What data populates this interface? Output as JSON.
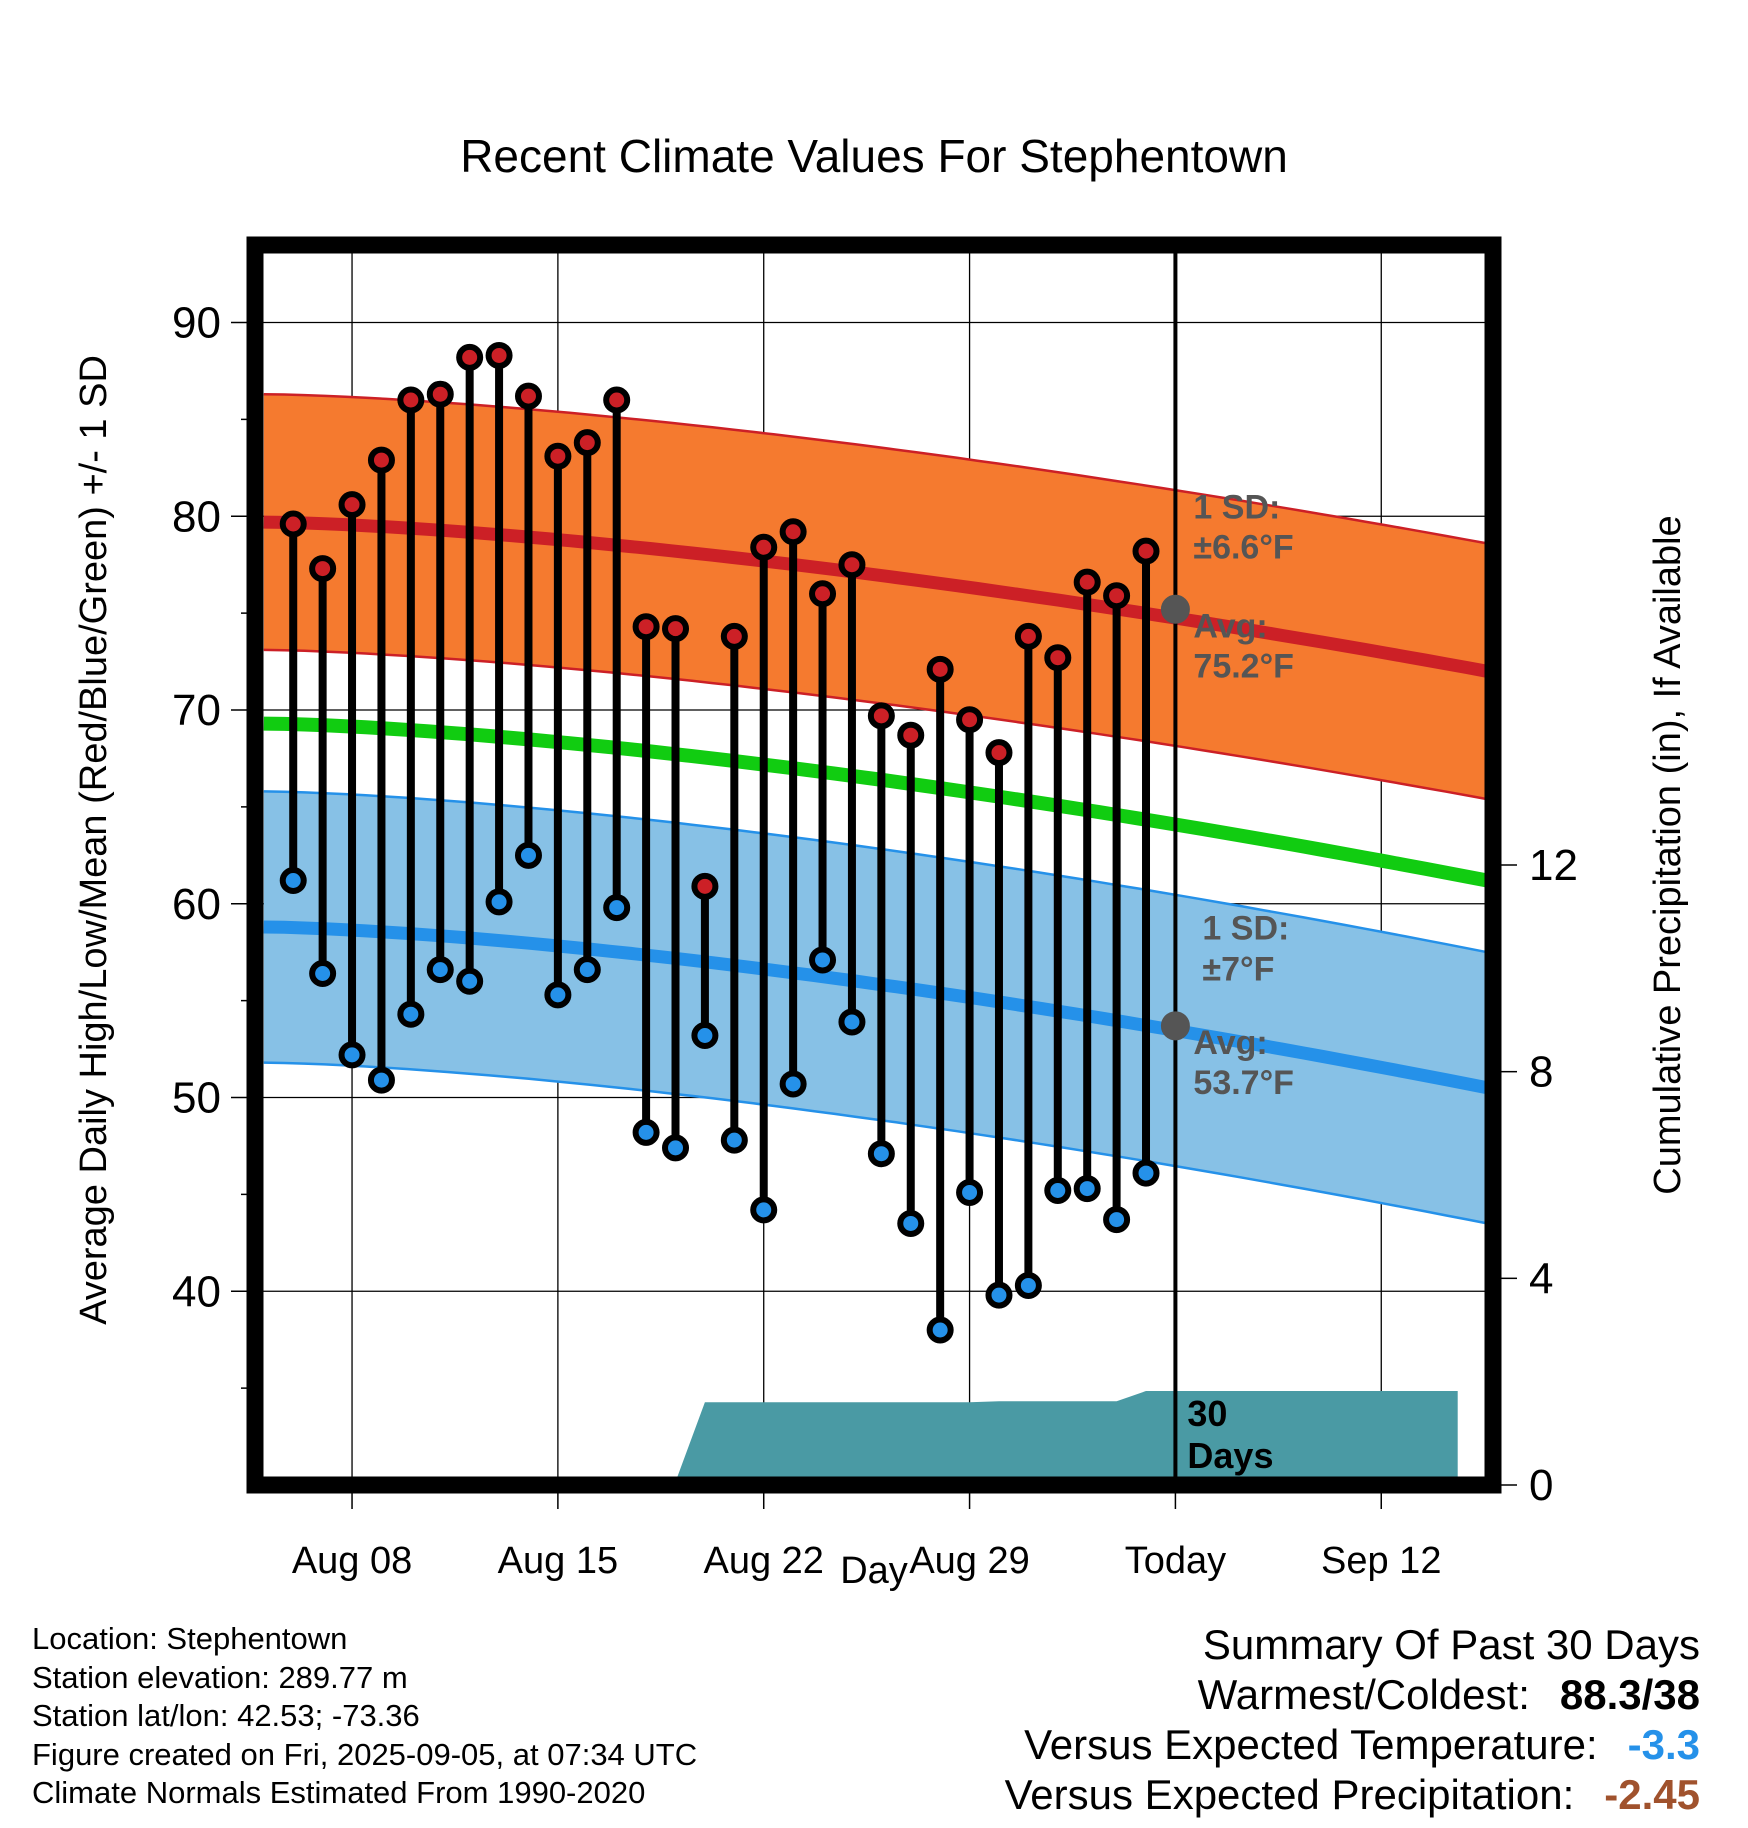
{
  "title": "Recent Climate Values For Stephentown",
  "chart_data": {
    "type": "line",
    "title": "Recent Climate Values For Stephentown",
    "xlabel": "Day",
    "ylabel": "Average Daily High/Low/Mean (Red/Blue/Green) +/- 1 SD",
    "y2label": "Cumulative Precipitation (in), If Available",
    "ylim": [
      30,
      94
    ],
    "y2lim": [
      0,
      24
    ],
    "x_range_days": [
      -31.3,
      10.8
    ],
    "x_ticks": [
      {
        "day": -28,
        "label": "Aug 08"
      },
      {
        "day": -21,
        "label": "Aug 15"
      },
      {
        "day": -14,
        "label": "Aug 22"
      },
      {
        "day": -7,
        "label": "Aug 29"
      },
      {
        "day": 0,
        "label": "Today"
      },
      {
        "day": 7,
        "label": "Sep 12"
      }
    ],
    "y_ticks": [
      40,
      50,
      60,
      70,
      80,
      90
    ],
    "y2_ticks": [
      0,
      4,
      8,
      12
    ],
    "grid": true,
    "colors": {
      "high": "#cc2026",
      "low": "#2591e9",
      "mean": "#11cc11",
      "high_band": "#f57a2f",
      "low_band": "#87c1e6",
      "precip": "#4a9aa4",
      "marker_high": "#cc2026",
      "marker_low": "#2591e9"
    },
    "normal_high": {
      "start": 79.7,
      "end": 72.0,
      "sd": 6.6,
      "label_sd": "1 SD:",
      "label_sd_value": "±6.6°F",
      "label_avg": "Avg:",
      "label_avg_value": "75.2°F",
      "today": 75.2
    },
    "normal_low": {
      "start": 58.8,
      "end": 50.5,
      "sd": 7.0,
      "label_sd": "1 SD:",
      "label_sd_value": "±7°F",
      "label_avg": "Avg:",
      "label_avg_value": "53.7°F",
      "today": 53.7
    },
    "normal_mean": {
      "start": 69.3,
      "end": 61.2
    },
    "daily": [
      {
        "day": -30,
        "high": 79.6,
        "low": 61.2
      },
      {
        "day": -29,
        "high": 77.3,
        "low": 56.4
      },
      {
        "day": -28,
        "high": 80.6,
        "low": 52.2
      },
      {
        "day": -27,
        "high": 82.9,
        "low": 50.9
      },
      {
        "day": -26,
        "high": 86.0,
        "low": 54.3
      },
      {
        "day": -25,
        "high": 86.3,
        "low": 56.6
      },
      {
        "day": -24,
        "high": 88.2,
        "low": 56.0
      },
      {
        "day": -23,
        "high": 88.3,
        "low": 60.1
      },
      {
        "day": -22,
        "high": 86.2,
        "low": 62.5
      },
      {
        "day": -21,
        "high": 83.1,
        "low": 55.3
      },
      {
        "day": -20,
        "high": 83.8,
        "low": 56.6
      },
      {
        "day": -19,
        "high": 86.0,
        "low": 59.8
      },
      {
        "day": -18,
        "high": 74.3,
        "low": 48.2
      },
      {
        "day": -17,
        "high": 74.2,
        "low": 47.4
      },
      {
        "day": -16,
        "high": 60.9,
        "low": 53.2
      },
      {
        "day": -15,
        "high": 73.8,
        "low": 47.8
      },
      {
        "day": -14,
        "high": 78.4,
        "low": 44.2
      },
      {
        "day": -13,
        "high": 79.2,
        "low": 50.7
      },
      {
        "day": -12,
        "high": 76.0,
        "low": 57.1
      },
      {
        "day": -11,
        "high": 77.5,
        "low": 53.9
      },
      {
        "day": -10,
        "high": 69.7,
        "low": 47.1
      },
      {
        "day": -9,
        "high": 68.7,
        "low": 43.5
      },
      {
        "day": -8,
        "high": 72.1,
        "low": 38.0
      },
      {
        "day": -7,
        "high": 69.5,
        "low": 45.1
      },
      {
        "day": -6,
        "high": 67.8,
        "low": 39.8
      },
      {
        "day": -5,
        "high": 73.8,
        "low": 40.3
      },
      {
        "day": -4,
        "high": 72.7,
        "low": 45.2
      },
      {
        "day": -3,
        "high": 76.6,
        "low": 45.3
      },
      {
        "day": -2,
        "high": 75.9,
        "low": 43.7
      },
      {
        "day": -1,
        "high": 78.2,
        "low": 46.1
      }
    ],
    "precip_cumulative": [
      {
        "day": -30.9,
        "value": 0.0
      },
      {
        "day": -30.0,
        "value": 0.02
      },
      {
        "day": -24.0,
        "value": 0.03
      },
      {
        "day": -23.0,
        "value": 0.05
      },
      {
        "day": -17.0,
        "value": 0.06
      },
      {
        "day": -16.0,
        "value": 1.6
      },
      {
        "day": -7.0,
        "value": 1.6
      },
      {
        "day": -6.0,
        "value": 1.62
      },
      {
        "day": -2.0,
        "value": 1.62
      },
      {
        "day": -1.0,
        "value": 1.82
      },
      {
        "day": 9.6,
        "value": 1.82
      }
    ],
    "precip_label": "30\nDays"
  },
  "info": {
    "location": "Location: Stephentown",
    "elevation": "Station elevation: 289.77 m",
    "latlon": "Station lat/lon: 42.53; -73.36",
    "created": "Figure created on Fri, 2025-09-05, at 07:34 UTC",
    "normals": "Climate Normals Estimated From 1990-2020"
  },
  "summary": {
    "title": "Summary Of Past 30 Days",
    "warmest_label": "Warmest/Coldest:",
    "warmest_value": "88.3/38",
    "temp_label": "Versus Expected Temperature:",
    "temp_value": "-3.3",
    "temp_color": "#2591e9",
    "precip_label": "Versus Expected Precipitation:",
    "precip_value": "-2.45",
    "precip_color": "#a0522d"
  }
}
